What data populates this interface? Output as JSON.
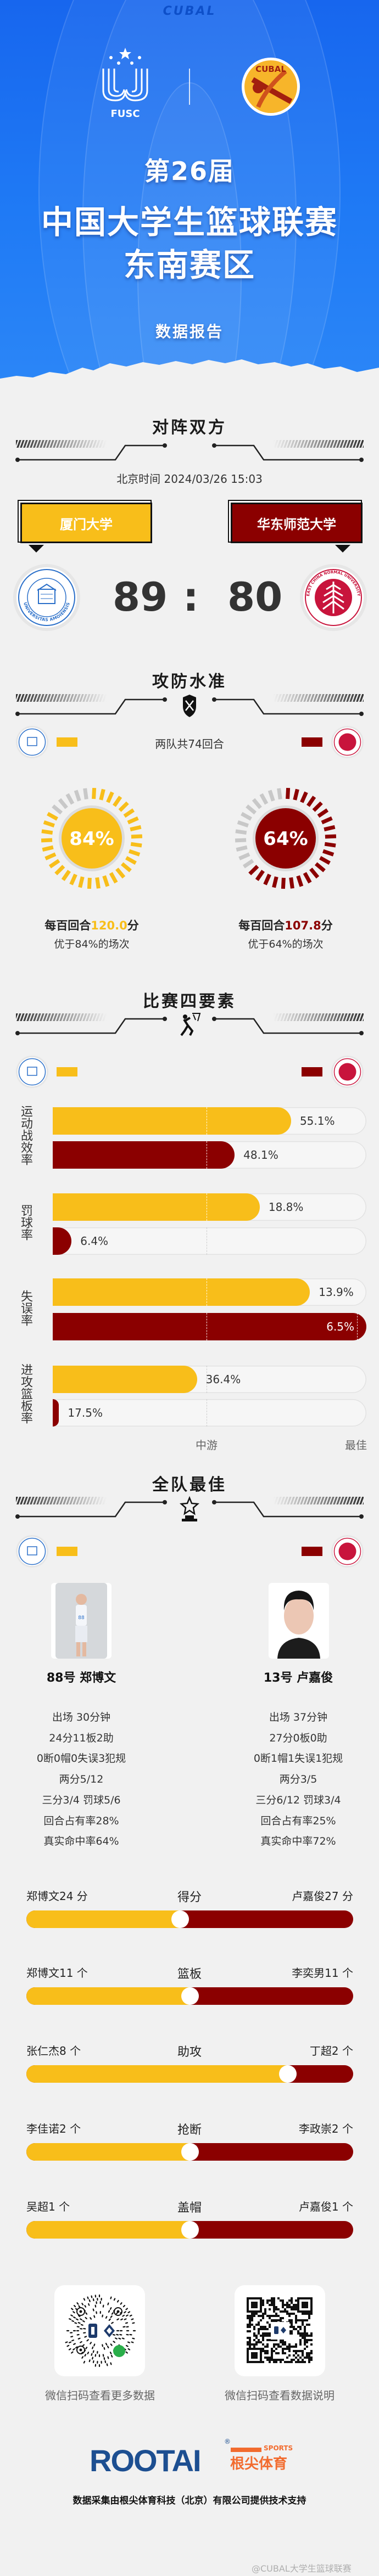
{
  "colors": {
    "home": "#F8BE1A",
    "away": "#8B0000",
    "header_blue": "#1B70F0",
    "accent_orange": "#F26B2E",
    "rootai_blue": "#1D4F91"
  },
  "header": {
    "brand_top": "CUBAL",
    "fusc_label": "FUSC",
    "cubal_logo_text": "CUBAL",
    "edition": "第26届",
    "title": "中国大学生篮球联赛",
    "region": "东南赛区",
    "subtitle": "数据报告"
  },
  "matchup": {
    "section_title": "对阵双方",
    "time": "北京时间 2024/03/26 15:03",
    "home_team": "厦门大学",
    "away_team": "华东师范大学",
    "home_score": "89",
    "separator": ":",
    "away_score": "80",
    "home_logo_text": "UNIVERSITAS AMOIENSIS",
    "away_logo_text": "EAST CHINA NORMAL UNIVERSITY"
  },
  "offense_defense": {
    "section_title": "攻防水准",
    "icon": "shield-crossed-swords-icon",
    "possessions": "两队共74回合",
    "home": {
      "percentile": 84,
      "percentile_label": "84%",
      "rating_prefix": "每百回合",
      "rating": "120.0",
      "rating_suffix": "分",
      "better_than": "优于84%的场次"
    },
    "away": {
      "percentile": 64,
      "percentile_label": "64%",
      "rating_prefix": "每百回合",
      "rating": "107.8",
      "rating_suffix": "分",
      "better_than": "优于64%的场次"
    }
  },
  "four_factors": {
    "section_title": "比赛四要素",
    "icon": "basketball-dunk-icon",
    "factors": [
      {
        "label": "运动战效率",
        "home": {
          "value": "55.1%",
          "level": 0.76
        },
        "away": {
          "value": "48.1%",
          "level": 0.58
        }
      },
      {
        "label": "罚球率",
        "home": {
          "value": "18.8%",
          "level": 0.66
        },
        "away": {
          "value": "6.4%",
          "level": 0.06
        }
      },
      {
        "label": "失误率",
        "home": {
          "value": "13.9%",
          "level": 0.82
        },
        "away": {
          "value": "6.5%",
          "level": 1.0
        }
      },
      {
        "label": "进攻篮板率",
        "home": {
          "value": "36.4%",
          "level": 0.46
        },
        "away": {
          "value": "17.5%",
          "level": 0.02
        }
      }
    ],
    "axis": {
      "mid": "中游",
      "best": "最佳"
    }
  },
  "best_players": {
    "section_title": "全队最佳",
    "icon": "trophy-star-icon",
    "home": {
      "name": "88号 郑博文",
      "stats": [
        "出场 30分钟",
        "24分11板2助",
        "0断0帽0失误3犯规",
        "两分5/12",
        "三分3/4 罚球5/6",
        "回合占有率28%",
        "真实命中率64%"
      ]
    },
    "away": {
      "name": "13号 卢嘉俊",
      "stats": [
        "出场 37分钟",
        "27分0板0助",
        "0断1帽1失误1犯规",
        "两分3/5",
        "三分6/12 罚球3/4",
        "回合占有率25%",
        "真实命中率72%"
      ]
    }
  },
  "leaders": [
    {
      "category": "得分",
      "home": "郑博文24 分",
      "away": "卢嘉俊27 分",
      "home_value": 24,
      "away_value": 27
    },
    {
      "category": "篮板",
      "home": "郑博文11 个",
      "away": "李奕男11 个",
      "home_value": 11,
      "away_value": 11
    },
    {
      "category": "助攻",
      "home": "张仁杰8 个",
      "away": "丁超2 个",
      "home_value": 8,
      "away_value": 2
    },
    {
      "category": "抢断",
      "home": "李佳诺2 个",
      "away": "李政崇2 个",
      "home_value": 2,
      "away_value": 2
    },
    {
      "category": "盖帽",
      "home": "吴超1 个",
      "away": "卢嘉俊1 个",
      "home_value": 1,
      "away_value": 1
    }
  ],
  "qr": [
    {
      "caption": "微信扫码查看更多数据",
      "type": "mini-program-code"
    },
    {
      "caption": "微信扫码查看数据说明",
      "type": "qr-code"
    }
  ],
  "sponsor": {
    "logo_text": "ROOTAI",
    "registered": "®",
    "logo_tag": "SPORTS",
    "logo_cn": "根尖体育",
    "credit": "数据采集由根尖体育科技（北京）有限公司提供技术支持"
  },
  "watermark": "@CUBAL大学生篮球联赛"
}
